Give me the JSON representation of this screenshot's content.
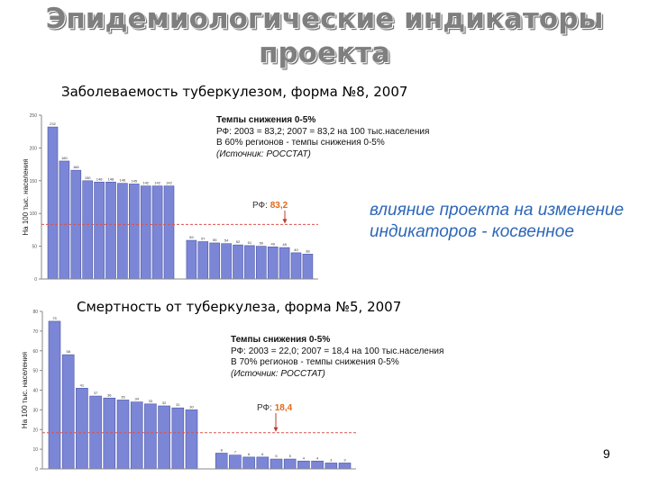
{
  "title": "Эпидемиологические индикаторы проекта",
  "influence_text": "влияние проекта на изменение индикаторов - косвенное",
  "page_number": "9",
  "colors": {
    "bar": "#7b86d6",
    "bar_edge": "#4c56a8",
    "reference_line": "#d9534f",
    "title": "#7f7f7f",
    "influence": "#2e67b8",
    "ref_value": "#e06a1a"
  },
  "chart_data": [
    {
      "type": "bar",
      "title": "Заболеваемость туберкулезом, форма №8, 2007",
      "ylabel": "На 100 тыс. населения",
      "ylim": [
        0,
        250
      ],
      "yticks": [
        0,
        50,
        100,
        150,
        200,
        250
      ],
      "values": [
        232,
        180,
        166,
        150,
        148,
        148,
        146,
        145,
        142,
        142,
        142,
        59,
        57,
        55,
        54,
        52,
        51,
        50,
        49,
        48,
        40,
        38
      ],
      "gap_after": 10,
      "reference": {
        "label": "РФ:",
        "value": 83.2,
        "value_text": "83,2"
      },
      "note": {
        "heading": "Темпы снижения 0-5%",
        "line1": "РФ: 2003 = 83,2;  2007 = 83,2 на 100 тыс.населения",
        "line2": "В 60% регионов - темпы снижения 0-5%",
        "source": "(Источник: РОССТАТ)"
      }
    },
    {
      "type": "bar",
      "title": "Смертность от туберкулеза, форма №5, 2007",
      "ylabel": "На 100 тыс. населения",
      "ylim": [
        0,
        80
      ],
      "yticks": [
        0,
        10,
        20,
        30,
        40,
        50,
        60,
        70,
        80
      ],
      "values": [
        75,
        58,
        41,
        37,
        36,
        35,
        34,
        33,
        32,
        31,
        30,
        8,
        7,
        6,
        6,
        5,
        5,
        4,
        4,
        3,
        3
      ],
      "gap_after": 10,
      "reference": {
        "label": "РФ:",
        "value": 18.4,
        "value_text": "18,4"
      },
      "note": {
        "heading": "Темпы снижения 0-5%",
        "line1": "РФ: 2003 = 22,0;  2007 = 18,4 на 100 тыс.населения",
        "line2": "В 70% регионов - темпы снижения 0-5%",
        "source": "(Источник: РОССТАТ)"
      }
    }
  ]
}
